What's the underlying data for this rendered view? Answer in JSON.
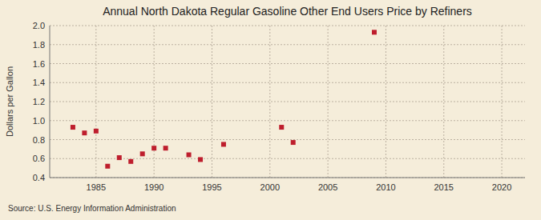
{
  "chart_data": {
    "type": "scatter",
    "title": "Annual North Dakota Regular Gasoline Other End Users Price by Refiners",
    "ylabel": "Dollars per Gallon",
    "source": "Source: U.S. Energy Information Administration",
    "x": [
      1983,
      1984,
      1985,
      1986,
      1987,
      1988,
      1989,
      1990,
      1991,
      1993,
      1994,
      1996,
      2001,
      2002,
      2009
    ],
    "values": [
      0.93,
      0.87,
      0.89,
      0.52,
      0.61,
      0.57,
      0.65,
      0.71,
      0.71,
      0.64,
      0.59,
      0.75,
      0.93,
      0.77,
      1.93
    ],
    "color": "#be1e2d",
    "marker": "square",
    "xlim": [
      1981,
      2022
    ],
    "ylim": [
      0.4,
      2.0
    ],
    "xticks": [
      1985,
      1990,
      1995,
      2000,
      2005,
      2010,
      2015,
      2020
    ],
    "yticks": [
      0.4,
      0.6,
      0.8,
      {
        "value": 1.0,
        "label": "1.0"
      },
      1.2,
      1.4,
      1.6,
      1.8,
      {
        "value": 2.0,
        "label": "2.0"
      }
    ],
    "grid": true
  }
}
